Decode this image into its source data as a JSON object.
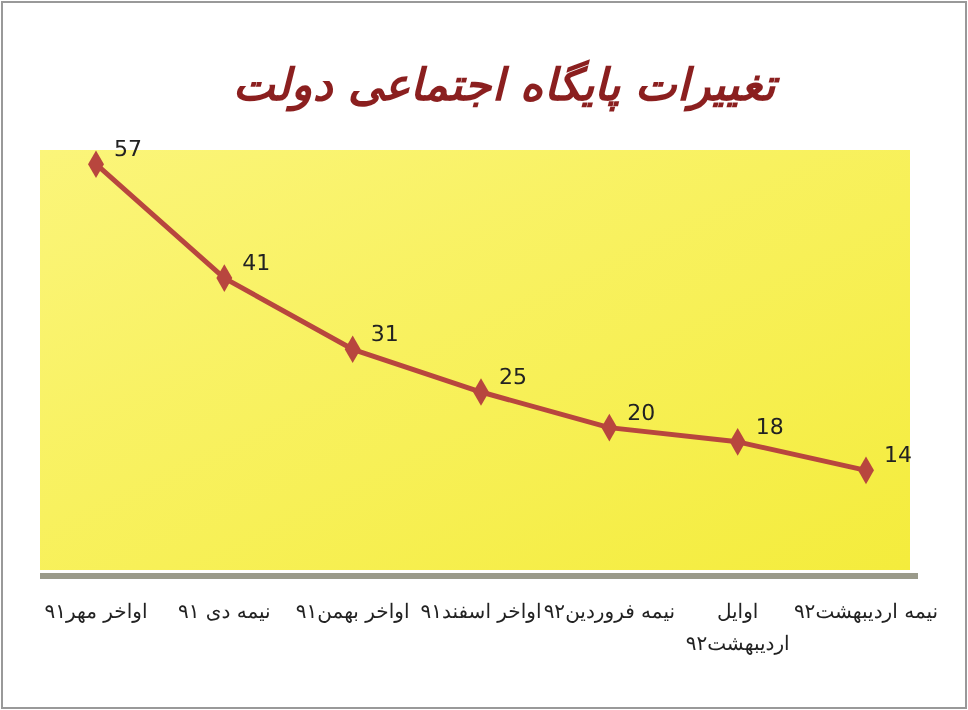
{
  "chart_data": {
    "type": "line",
    "title": "تغییرات پایگاه اجتماعی دولت",
    "categories": [
      "اواخر مهر۹۱",
      "نیمه دی ۹۱",
      "اواخر بهمن۹۱",
      "اواخر اسفند۹۱",
      "نیمه فروردین۹۲",
      "اوایل اردیبهشت۹۲",
      "نیمه اردیبهشت۹۲"
    ],
    "series": [
      {
        "color": "#b8463e",
        "values": [
          57,
          41,
          31,
          25,
          20,
          18,
          14
        ]
      }
    ],
    "data_labels": true,
    "marker": "diamond",
    "line_style": "solid"
  }
}
